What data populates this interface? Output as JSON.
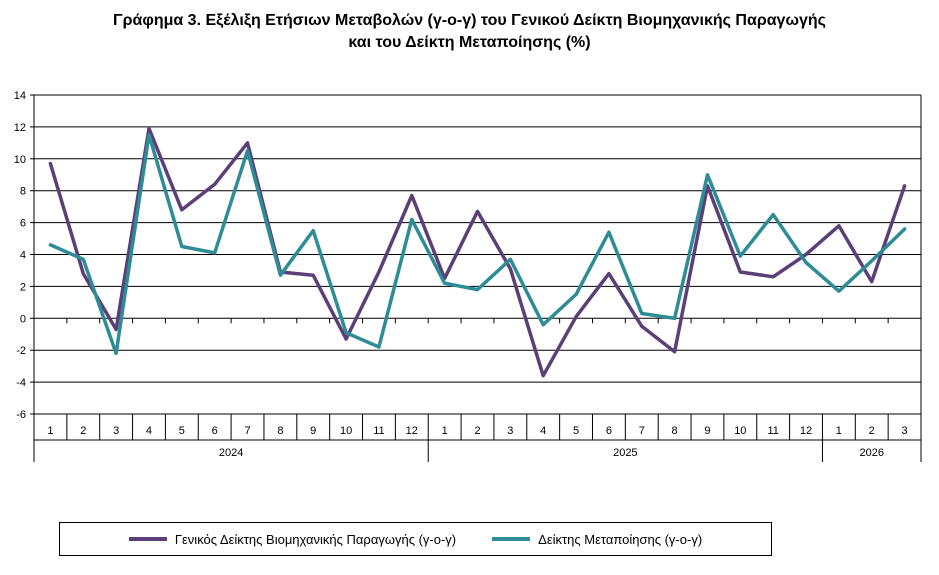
{
  "colors": {
    "series1": "#5b3f78",
    "series2": "#2e8c96",
    "grid": "#000000"
  },
  "chart_data": {
    "type": "line",
    "title": "Γράφημα 3. Εξέλιξη Ετήσιων Μεταβολών (γ-ο-γ) του Γενικού Δείκτη Βιομηχανικής Παραγωγής",
    "subtitle": "και του Δείκτη Μεταποίησης (%)",
    "xlabel": "",
    "ylabel": "",
    "ylim": [
      -6,
      14
    ],
    "yticks": [
      "14",
      "12",
      "10",
      "8",
      "6",
      "4",
      "2",
      "0",
      "-2",
      "-4",
      "-6"
    ],
    "grid": true,
    "legend_position": "bottom",
    "categories": [
      "1",
      "2",
      "3",
      "4",
      "5",
      "6",
      "7",
      "8",
      "9",
      "10",
      "11",
      "12",
      "1",
      "2",
      "3",
      "4",
      "5",
      "6",
      "7",
      "8",
      "9",
      "10",
      "11",
      "12",
      "1",
      "2",
      "3"
    ],
    "years": [
      {
        "label": "2024",
        "count": 12
      },
      {
        "label": "2025",
        "count": 12
      },
      {
        "label": "2026",
        "count": 3
      }
    ],
    "series": [
      {
        "name": "Γενικός Δείκτης Βιομηχανικής Παραγωγής (γ-ο-γ)",
        "values": [
          9.7,
          2.8,
          -0.7,
          11.9,
          6.8,
          8.4,
          11.0,
          2.9,
          2.7,
          -1.3,
          2.9,
          7.7,
          2.5,
          6.7,
          3.1,
          -3.6,
          0.1,
          2.8,
          -0.5,
          -2.1,
          8.3,
          2.9,
          2.6,
          4.0,
          5.8,
          2.3,
          8.3
        ]
      },
      {
        "name": "Δείκτης Μεταποίησης (γ-ο-γ)",
        "values": [
          4.6,
          3.7,
          -2.2,
          11.5,
          4.5,
          4.1,
          10.5,
          2.7,
          5.5,
          -0.9,
          -1.8,
          6.2,
          2.2,
          1.8,
          3.7,
          -0.4,
          1.5,
          5.4,
          0.3,
          0.0,
          9.0,
          3.9,
          6.5,
          3.5,
          1.7,
          3.6,
          5.6
        ]
      }
    ]
  }
}
